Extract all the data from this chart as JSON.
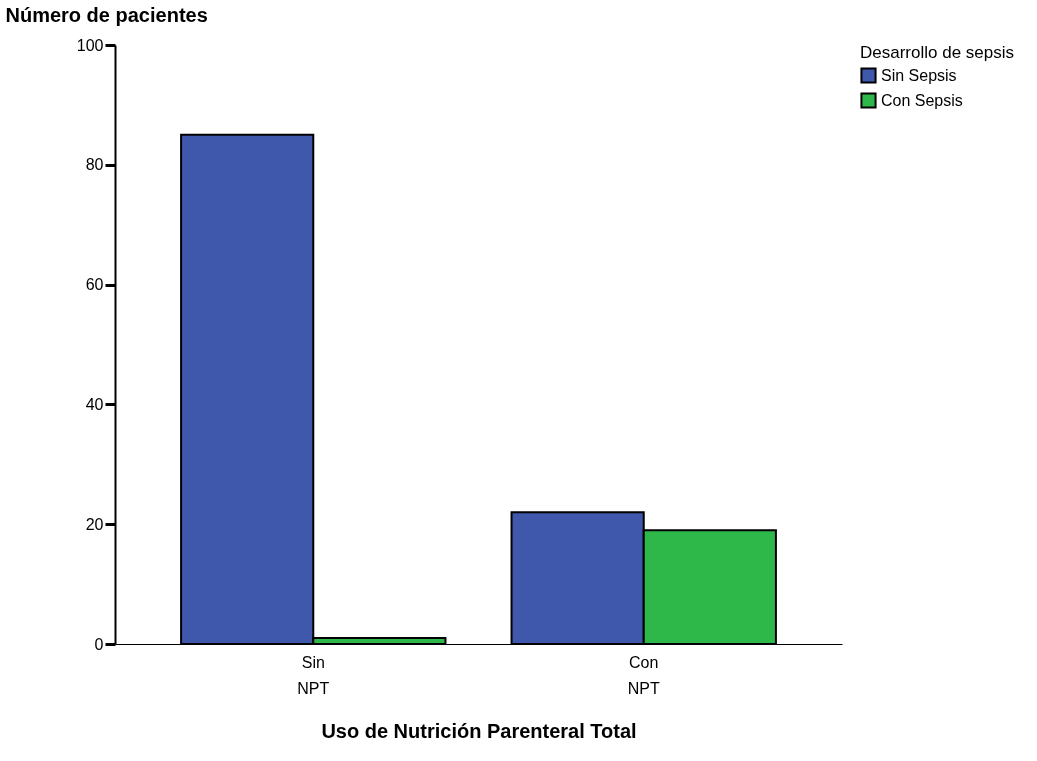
{
  "chart_data": {
    "type": "bar",
    "xlabel": "Uso de Nutrición Parenteral Total",
    "ylabel": "Número de pacientes",
    "legend_title": "Desarrollo de sepsis",
    "categories": [
      "Sin NPT",
      "Con NPT"
    ],
    "series": [
      {
        "name": "Sin Sepsis",
        "color": "#3f58ab",
        "values": [
          85,
          22
        ]
      },
      {
        "name": "Con Sepsis",
        "color": "#2fb84a",
        "values": [
          1,
          19
        ]
      }
    ],
    "ylim": [
      0,
      100
    ],
    "yticks": [
      0,
      20,
      40,
      60,
      80,
      100
    ],
    "grid": false,
    "legend": "top right"
  }
}
